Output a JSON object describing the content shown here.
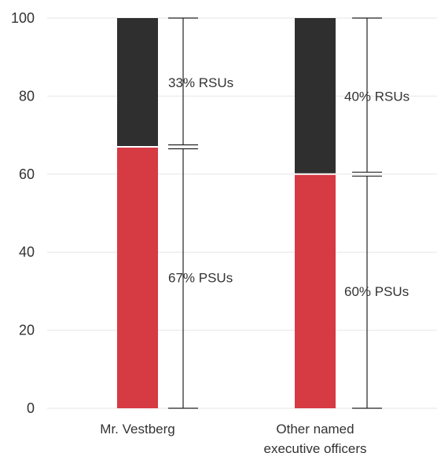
{
  "chart_data": {
    "type": "bar",
    "stacked": true,
    "categories": [
      "Mr. Vestberg",
      "Other named executive officers"
    ],
    "category_lines": [
      [
        "Mr. Vestberg"
      ],
      [
        "Other named",
        "executive officers"
      ]
    ],
    "series": [
      {
        "values": [
          67,
          60
        ],
        "color": "#d63a43"
      },
      {
        "values": [
          33,
          40
        ],
        "color": "#2f2f2f"
      }
    ],
    "annotations": [
      {
        "category": 0,
        "segment": 0,
        "label": "67% PSUs"
      },
      {
        "category": 0,
        "segment": 1,
        "label": "33% RSUs"
      },
      {
        "category": 1,
        "segment": 0,
        "label": "60% PSUs"
      },
      {
        "category": 1,
        "segment": 1,
        "label": "40% RSUs"
      }
    ],
    "ylim": [
      0,
      100
    ],
    "yticks": [
      0,
      20,
      40,
      60,
      80,
      100
    ],
    "grid": true,
    "legend": "none",
    "title": "",
    "xlabel": "",
    "ylabel": ""
  }
}
